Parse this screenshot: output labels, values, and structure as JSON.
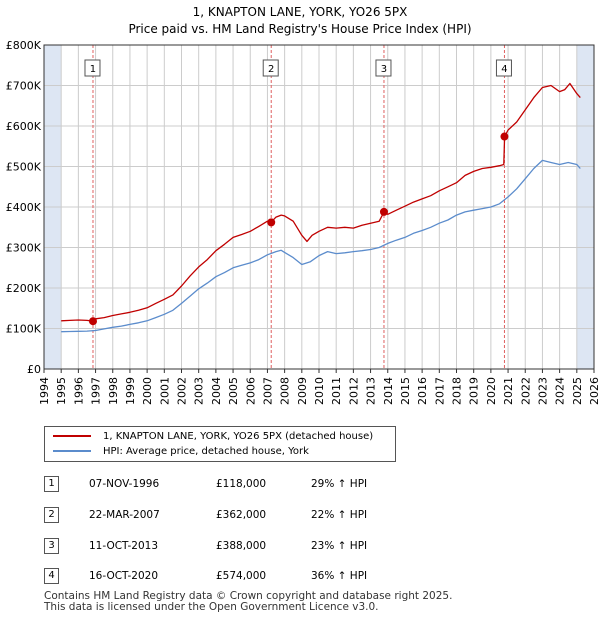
{
  "title": "1, KNAPTON LANE, YORK, YO26 5PX",
  "subtitle": "Price paid vs. HM Land Registry's House Price Index (HPI)",
  "colors": {
    "property": "#c00000",
    "hpi": "#5b8ccc",
    "shade": "#dde6f3",
    "grid": "#cccccc",
    "vline": "#e06060"
  },
  "chart_data": {
    "type": "line",
    "title": "1, KNAPTON LANE, YORK, YO26 5PX",
    "subtitle": "Price paid vs. HM Land Registry's House Price Index (HPI)",
    "xlim": [
      1994,
      2026
    ],
    "ylim": [
      0,
      800000
    ],
    "y_ticks": [
      {
        "value": 0,
        "label": "£0"
      },
      {
        "value": 100000,
        "label": "£100K"
      },
      {
        "value": 200000,
        "label": "£200K"
      },
      {
        "value": 300000,
        "label": "£300K"
      },
      {
        "value": 400000,
        "label": "£400K"
      },
      {
        "value": 500000,
        "label": "£500K"
      },
      {
        "value": 600000,
        "label": "£600K"
      },
      {
        "value": 700000,
        "label": "£700K"
      },
      {
        "value": 800000,
        "label": "£800K"
      }
    ],
    "x_ticks": [
      "1994",
      "1995",
      "1996",
      "1997",
      "1998",
      "1999",
      "2000",
      "2001",
      "2002",
      "2003",
      "2004",
      "2005",
      "2006",
      "2007",
      "2008",
      "2009",
      "2010",
      "2011",
      "2012",
      "2013",
      "2014",
      "2015",
      "2016",
      "2017",
      "2018",
      "2019",
      "2020",
      "2021",
      "2022",
      "2023",
      "2024",
      "2025",
      "2026"
    ],
    "grid": true,
    "shaded_ranges": [
      [
        1994,
        1995
      ],
      [
        2025,
        2026
      ]
    ],
    "series": [
      {
        "name": "1, KNAPTON LANE, YORK, YO26 5PX (detached house)",
        "color": "#c00000",
        "points": [
          [
            1995,
            119000
          ],
          [
            1995.5,
            120000
          ],
          [
            1996,
            121000
          ],
          [
            1996.5,
            120000
          ],
          [
            1996.85,
            118000
          ],
          [
            1997,
            124000
          ],
          [
            1997.5,
            127000
          ],
          [
            1998,
            132000
          ],
          [
            1998.5,
            136000
          ],
          [
            1999,
            140000
          ],
          [
            1999.5,
            145000
          ],
          [
            2000,
            151000
          ],
          [
            2000.5,
            162000
          ],
          [
            2001,
            172000
          ],
          [
            2001.5,
            183000
          ],
          [
            2002,
            205000
          ],
          [
            2002.5,
            230000
          ],
          [
            2003,
            252000
          ],
          [
            2003.5,
            270000
          ],
          [
            2004,
            292000
          ],
          [
            2004.5,
            308000
          ],
          [
            2005,
            325000
          ],
          [
            2005.5,
            332000
          ],
          [
            2006,
            340000
          ],
          [
            2006.5,
            352000
          ],
          [
            2007,
            365000
          ],
          [
            2007.2,
            362000
          ],
          [
            2007.5,
            375000
          ],
          [
            2007.8,
            380000
          ],
          [
            2008,
            378000
          ],
          [
            2008.5,
            365000
          ],
          [
            2009,
            330000
          ],
          [
            2009.3,
            315000
          ],
          [
            2009.6,
            330000
          ],
          [
            2010,
            340000
          ],
          [
            2010.5,
            350000
          ],
          [
            2011,
            348000
          ],
          [
            2011.5,
            350000
          ],
          [
            2012,
            348000
          ],
          [
            2012.5,
            355000
          ],
          [
            2013,
            360000
          ],
          [
            2013.5,
            365000
          ],
          [
            2013.78,
            388000
          ],
          [
            2014,
            382000
          ],
          [
            2014.5,
            392000
          ],
          [
            2015,
            402000
          ],
          [
            2015.5,
            412000
          ],
          [
            2016,
            420000
          ],
          [
            2016.5,
            428000
          ],
          [
            2017,
            440000
          ],
          [
            2017.5,
            450000
          ],
          [
            2018,
            460000
          ],
          [
            2018.5,
            478000
          ],
          [
            2019,
            488000
          ],
          [
            2019.5,
            495000
          ],
          [
            2020,
            498000
          ],
          [
            2020.5,
            502000
          ],
          [
            2020.75,
            505000
          ],
          [
            2020.8,
            574000
          ],
          [
            2021,
            590000
          ],
          [
            2021.5,
            610000
          ],
          [
            2022,
            640000
          ],
          [
            2022.5,
            670000
          ],
          [
            2023,
            695000
          ],
          [
            2023.5,
            700000
          ],
          [
            2024,
            685000
          ],
          [
            2024.3,
            690000
          ],
          [
            2024.6,
            705000
          ],
          [
            2025,
            680000
          ],
          [
            2025.2,
            670000
          ]
        ]
      },
      {
        "name": "HPI: Average price, detached house, York",
        "color": "#5b8ccc",
        "points": [
          [
            1995,
            92000
          ],
          [
            1995.5,
            92500
          ],
          [
            1996,
            93000
          ],
          [
            1996.5,
            93500
          ],
          [
            1997,
            95000
          ],
          [
            1997.5,
            99000
          ],
          [
            1998,
            103000
          ],
          [
            1998.5,
            106000
          ],
          [
            1999,
            110000
          ],
          [
            1999.5,
            114000
          ],
          [
            2000,
            119000
          ],
          [
            2000.5,
            127000
          ],
          [
            2001,
            135000
          ],
          [
            2001.5,
            145000
          ],
          [
            2002,
            162000
          ],
          [
            2002.5,
            180000
          ],
          [
            2003,
            198000
          ],
          [
            2003.5,
            212000
          ],
          [
            2004,
            228000
          ],
          [
            2004.5,
            238000
          ],
          [
            2005,
            250000
          ],
          [
            2005.5,
            256000
          ],
          [
            2006,
            262000
          ],
          [
            2006.5,
            270000
          ],
          [
            2007,
            282000
          ],
          [
            2007.5,
            290000
          ],
          [
            2007.8,
            293000
          ],
          [
            2008,
            288000
          ],
          [
            2008.5,
            275000
          ],
          [
            2009,
            258000
          ],
          [
            2009.5,
            265000
          ],
          [
            2010,
            280000
          ],
          [
            2010.5,
            290000
          ],
          [
            2011,
            285000
          ],
          [
            2011.5,
            287000
          ],
          [
            2012,
            290000
          ],
          [
            2012.5,
            292000
          ],
          [
            2013,
            295000
          ],
          [
            2013.5,
            300000
          ],
          [
            2014,
            310000
          ],
          [
            2014.5,
            318000
          ],
          [
            2015,
            325000
          ],
          [
            2015.5,
            335000
          ],
          [
            2016,
            342000
          ],
          [
            2016.5,
            350000
          ],
          [
            2017,
            360000
          ],
          [
            2017.5,
            368000
          ],
          [
            2018,
            380000
          ],
          [
            2018.5,
            388000
          ],
          [
            2019,
            392000
          ],
          [
            2019.5,
            396000
          ],
          [
            2020,
            400000
          ],
          [
            2020.5,
            408000
          ],
          [
            2021,
            425000
          ],
          [
            2021.5,
            445000
          ],
          [
            2022,
            470000
          ],
          [
            2022.5,
            495000
          ],
          [
            2023,
            515000
          ],
          [
            2023.5,
            510000
          ],
          [
            2024,
            505000
          ],
          [
            2024.5,
            510000
          ],
          [
            2025,
            505000
          ],
          [
            2025.2,
            495000
          ]
        ]
      }
    ],
    "sales": [
      {
        "id": "1",
        "date": "07-NOV-1996",
        "year": 1996.85,
        "price_value": 118000,
        "price": "£118,000",
        "hpi_delta": "29% ↑ HPI"
      },
      {
        "id": "2",
        "date": "22-MAR-2007",
        "year": 2007.22,
        "price_value": 362000,
        "price": "£362,000",
        "hpi_delta": "22% ↑ HPI"
      },
      {
        "id": "3",
        "date": "11-OCT-2013",
        "year": 2013.78,
        "price_value": 388000,
        "price": "£388,000",
        "hpi_delta": "23% ↑ HPI"
      },
      {
        "id": "4",
        "date": "16-OCT-2020",
        "year": 2020.79,
        "price_value": 574000,
        "price": "£574,000",
        "hpi_delta": "36% ↑ HPI"
      }
    ]
  },
  "legend": {
    "property_label": "1, KNAPTON LANE, YORK, YO26 5PX (detached house)",
    "hpi_label": "HPI: Average price, detached house, York"
  },
  "footer": {
    "line1": "Contains HM Land Registry data © Crown copyright and database right 2025.",
    "line2": "This data is licensed under the Open Government Licence v3.0."
  }
}
